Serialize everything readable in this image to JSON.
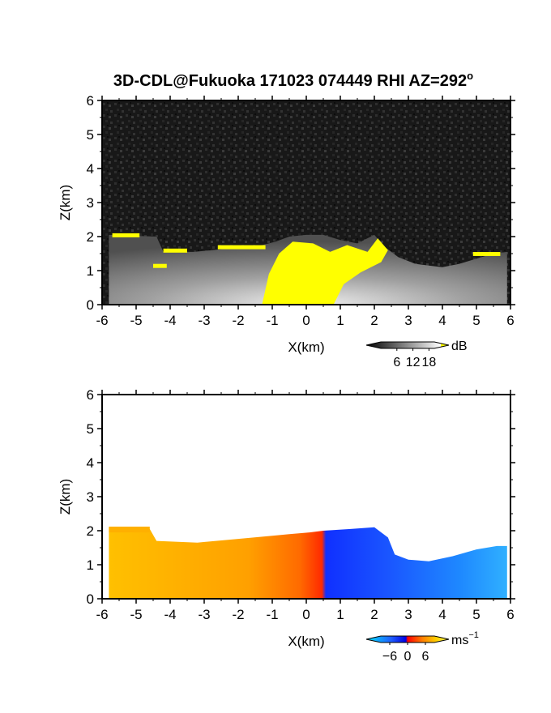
{
  "figure": {
    "title": "3D-CDL@Fukuoka 171023 074449 RHI AZ=292",
    "title_superscript": "o"
  },
  "chart_data": [
    {
      "type": "heatmap",
      "id": "intensity-panel",
      "xlabel": "X(km)",
      "ylabel": "Z(km)",
      "xlim": [
        -6,
        6
      ],
      "ylim": [
        0,
        6
      ],
      "xticks": [
        "-6",
        "-5",
        "-4",
        "-3",
        "-2",
        "-1",
        "0",
        "1",
        "2",
        "3",
        "4",
        "5",
        "6"
      ],
      "yticks": [
        "0",
        "1",
        "2",
        "3",
        "4",
        "5",
        "6"
      ],
      "colorbar": {
        "unit": "dB",
        "tick_labels": [
          "6",
          "12",
          "18"
        ],
        "tick_values": [
          6,
          12,
          18
        ],
        "range": [
          0,
          20
        ],
        "colors": [
          "#000000",
          "#ffffff",
          "#ffff00"
        ]
      },
      "background": "noisy grayscale speckle",
      "high_signal_color": "#ffff00",
      "echo_top_profile": {
        "x": [
          -5.8,
          -4.4,
          -4.2,
          -3.3,
          -2.3,
          -1.5,
          -0.9,
          -0.5,
          0.0,
          0.5,
          1.0,
          1.5,
          2.0,
          2.3,
          2.7,
          3.2,
          3.6,
          4.0,
          4.5,
          5.0,
          5.5,
          5.9
        ],
        "z": [
          2.05,
          2.0,
          1.55,
          1.55,
          1.65,
          1.7,
          1.85,
          2.0,
          2.05,
          2.05,
          1.9,
          1.8,
          2.05,
          1.7,
          1.4,
          1.2,
          1.15,
          1.1,
          1.2,
          1.35,
          1.5,
          1.55
        ]
      }
    },
    {
      "type": "heatmap",
      "id": "velocity-panel",
      "xlabel": "X(km)",
      "ylabel": "Z(km)",
      "xlim": [
        -6,
        6
      ],
      "ylim": [
        0,
        6
      ],
      "xticks": [
        "-6",
        "-5",
        "-4",
        "-3",
        "-2",
        "-1",
        "0",
        "1",
        "2",
        "3",
        "4",
        "5",
        "6"
      ],
      "yticks": [
        "0",
        "1",
        "2",
        "3",
        "4",
        "5",
        "6"
      ],
      "colorbar": {
        "unit": "ms",
        "unit_superscript": "−1",
        "tick_labels": [
          "−6",
          "0",
          "6"
        ],
        "tick_values": [
          -6,
          0,
          6
        ],
        "range": [
          -9,
          9
        ],
        "colors": [
          "#00e5ff",
          "#1f5fff",
          "#0000e0",
          "#ff0000",
          "#ff7f00",
          "#ffd000",
          "#ffff60"
        ]
      },
      "x_sign_change_km": 0.2,
      "x": [
        -5.5,
        -4.5,
        -3.5,
        -2.5,
        -1.5,
        -0.5,
        0.0,
        0.5,
        1.0,
        2.0,
        3.0,
        4.0,
        5.0,
        5.8
      ],
      "velocity_ms": [
        5.5,
        5.0,
        4.5,
        3.5,
        3.0,
        2.0,
        1.0,
        -1.5,
        -2.5,
        -3.0,
        -3.5,
        -4.0,
        -5.0,
        -6.0
      ],
      "echo_top_profile": {
        "x": [
          -5.8,
          -4.6,
          -4.4,
          -3.2,
          -2.1,
          -1.0,
          -0.5,
          0.1,
          0.5,
          1.3,
          2.0,
          2.4,
          2.6,
          3.0,
          3.6,
          4.3,
          5.0,
          5.6,
          5.9
        ],
        "z": [
          2.1,
          2.05,
          1.7,
          1.65,
          1.75,
          1.85,
          1.9,
          1.95,
          2.0,
          2.05,
          2.1,
          1.8,
          1.3,
          1.15,
          1.1,
          1.25,
          1.45,
          1.55,
          1.55
        ]
      }
    }
  ]
}
